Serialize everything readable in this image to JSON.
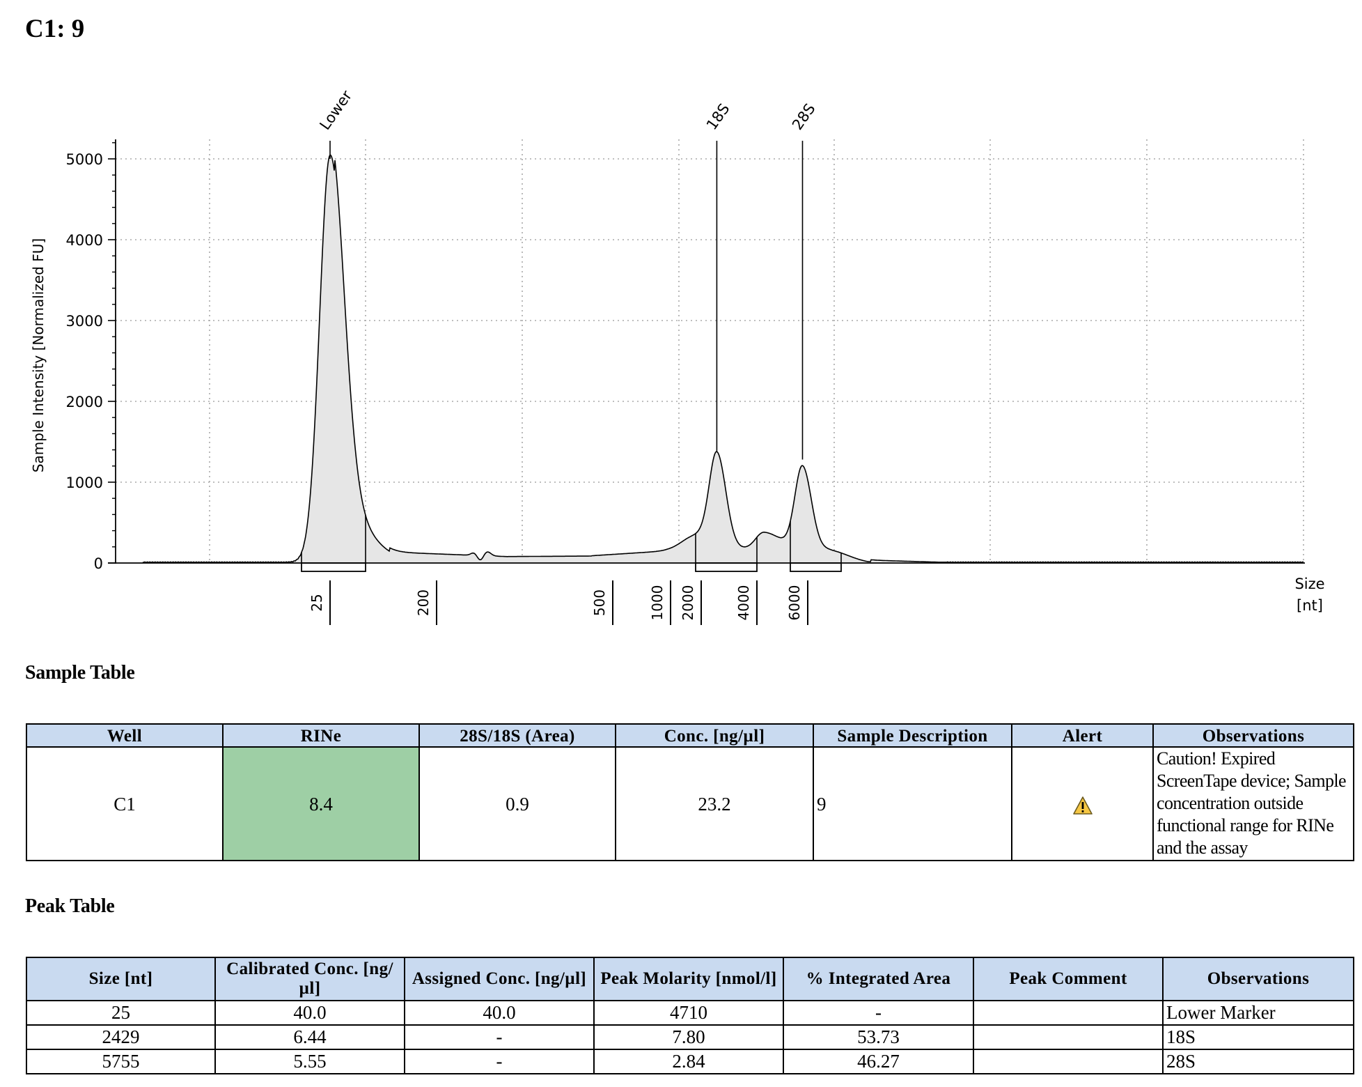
{
  "title": "C1: 9",
  "chart_data": {
    "type": "area",
    "ylabel": "Sample Intensity [Normalized FU]",
    "xlabel": "Size [nt]",
    "xlabel_lines": [
      "Size",
      "[nt]"
    ],
    "ylim": [
      0,
      5200
    ],
    "yticks": [
      "0",
      "1000",
      "2000",
      "3000",
      "4000",
      "5000"
    ],
    "yticks_values": [
      0,
      1000,
      2000,
      3000,
      4000,
      5000
    ],
    "x_size_labels": [
      "25",
      "200",
      "500",
      "1000",
      "2000",
      "4000",
      "6000"
    ],
    "x_size_values": [
      25,
      200,
      500,
      1000,
      2000,
      4000,
      6000
    ],
    "peak_labels": [
      "Lower",
      "18S",
      "28S"
    ],
    "peaks": [
      {
        "label": "Lower",
        "size": 25,
        "intensity": 5000
      },
      {
        "label": "18S",
        "size": 2429,
        "intensity": 1380
      },
      {
        "label": "28S",
        "size": 5755,
        "intensity": 1280
      }
    ],
    "grid": true,
    "curve_color": "#000000",
    "fill_color": "#e6e6e6"
  },
  "sample_table": {
    "title": "Sample Table",
    "headers": [
      "Well",
      "RINe",
      "28S/18S (Area)",
      "Conc. [ng/µl]",
      "Sample Description",
      "Alert",
      "Observations"
    ],
    "row": {
      "well": "C1",
      "rine": "8.4",
      "ratio": "0.9",
      "conc": "23.2",
      "description": "9",
      "alert_icon": "warning-icon",
      "observations": "Caution! Expired ScreenTape device; Sample concentration outside functional range for RINe and the assay"
    },
    "rine_color": "#9ecfa5"
  },
  "peak_table": {
    "title": "Peak Table",
    "headers": [
      "Size [nt]",
      "Calibrated Conc. [ng/µl]",
      "Assigned Conc. [ng/µl]",
      "Peak Molarity [nmol/l]",
      "% Integrated Area",
      "Peak Comment",
      "Observations"
    ],
    "rows": [
      [
        "25",
        "40.0",
        "40.0",
        "4710",
        "-",
        "",
        "Lower Marker"
      ],
      [
        "2429",
        "6.44",
        "-",
        "7.80",
        "53.73",
        "",
        "18S"
      ],
      [
        "5755",
        "5.55",
        "-",
        "2.84",
        "46.27",
        "",
        "28S"
      ]
    ]
  },
  "header_color": "#c9daf0"
}
